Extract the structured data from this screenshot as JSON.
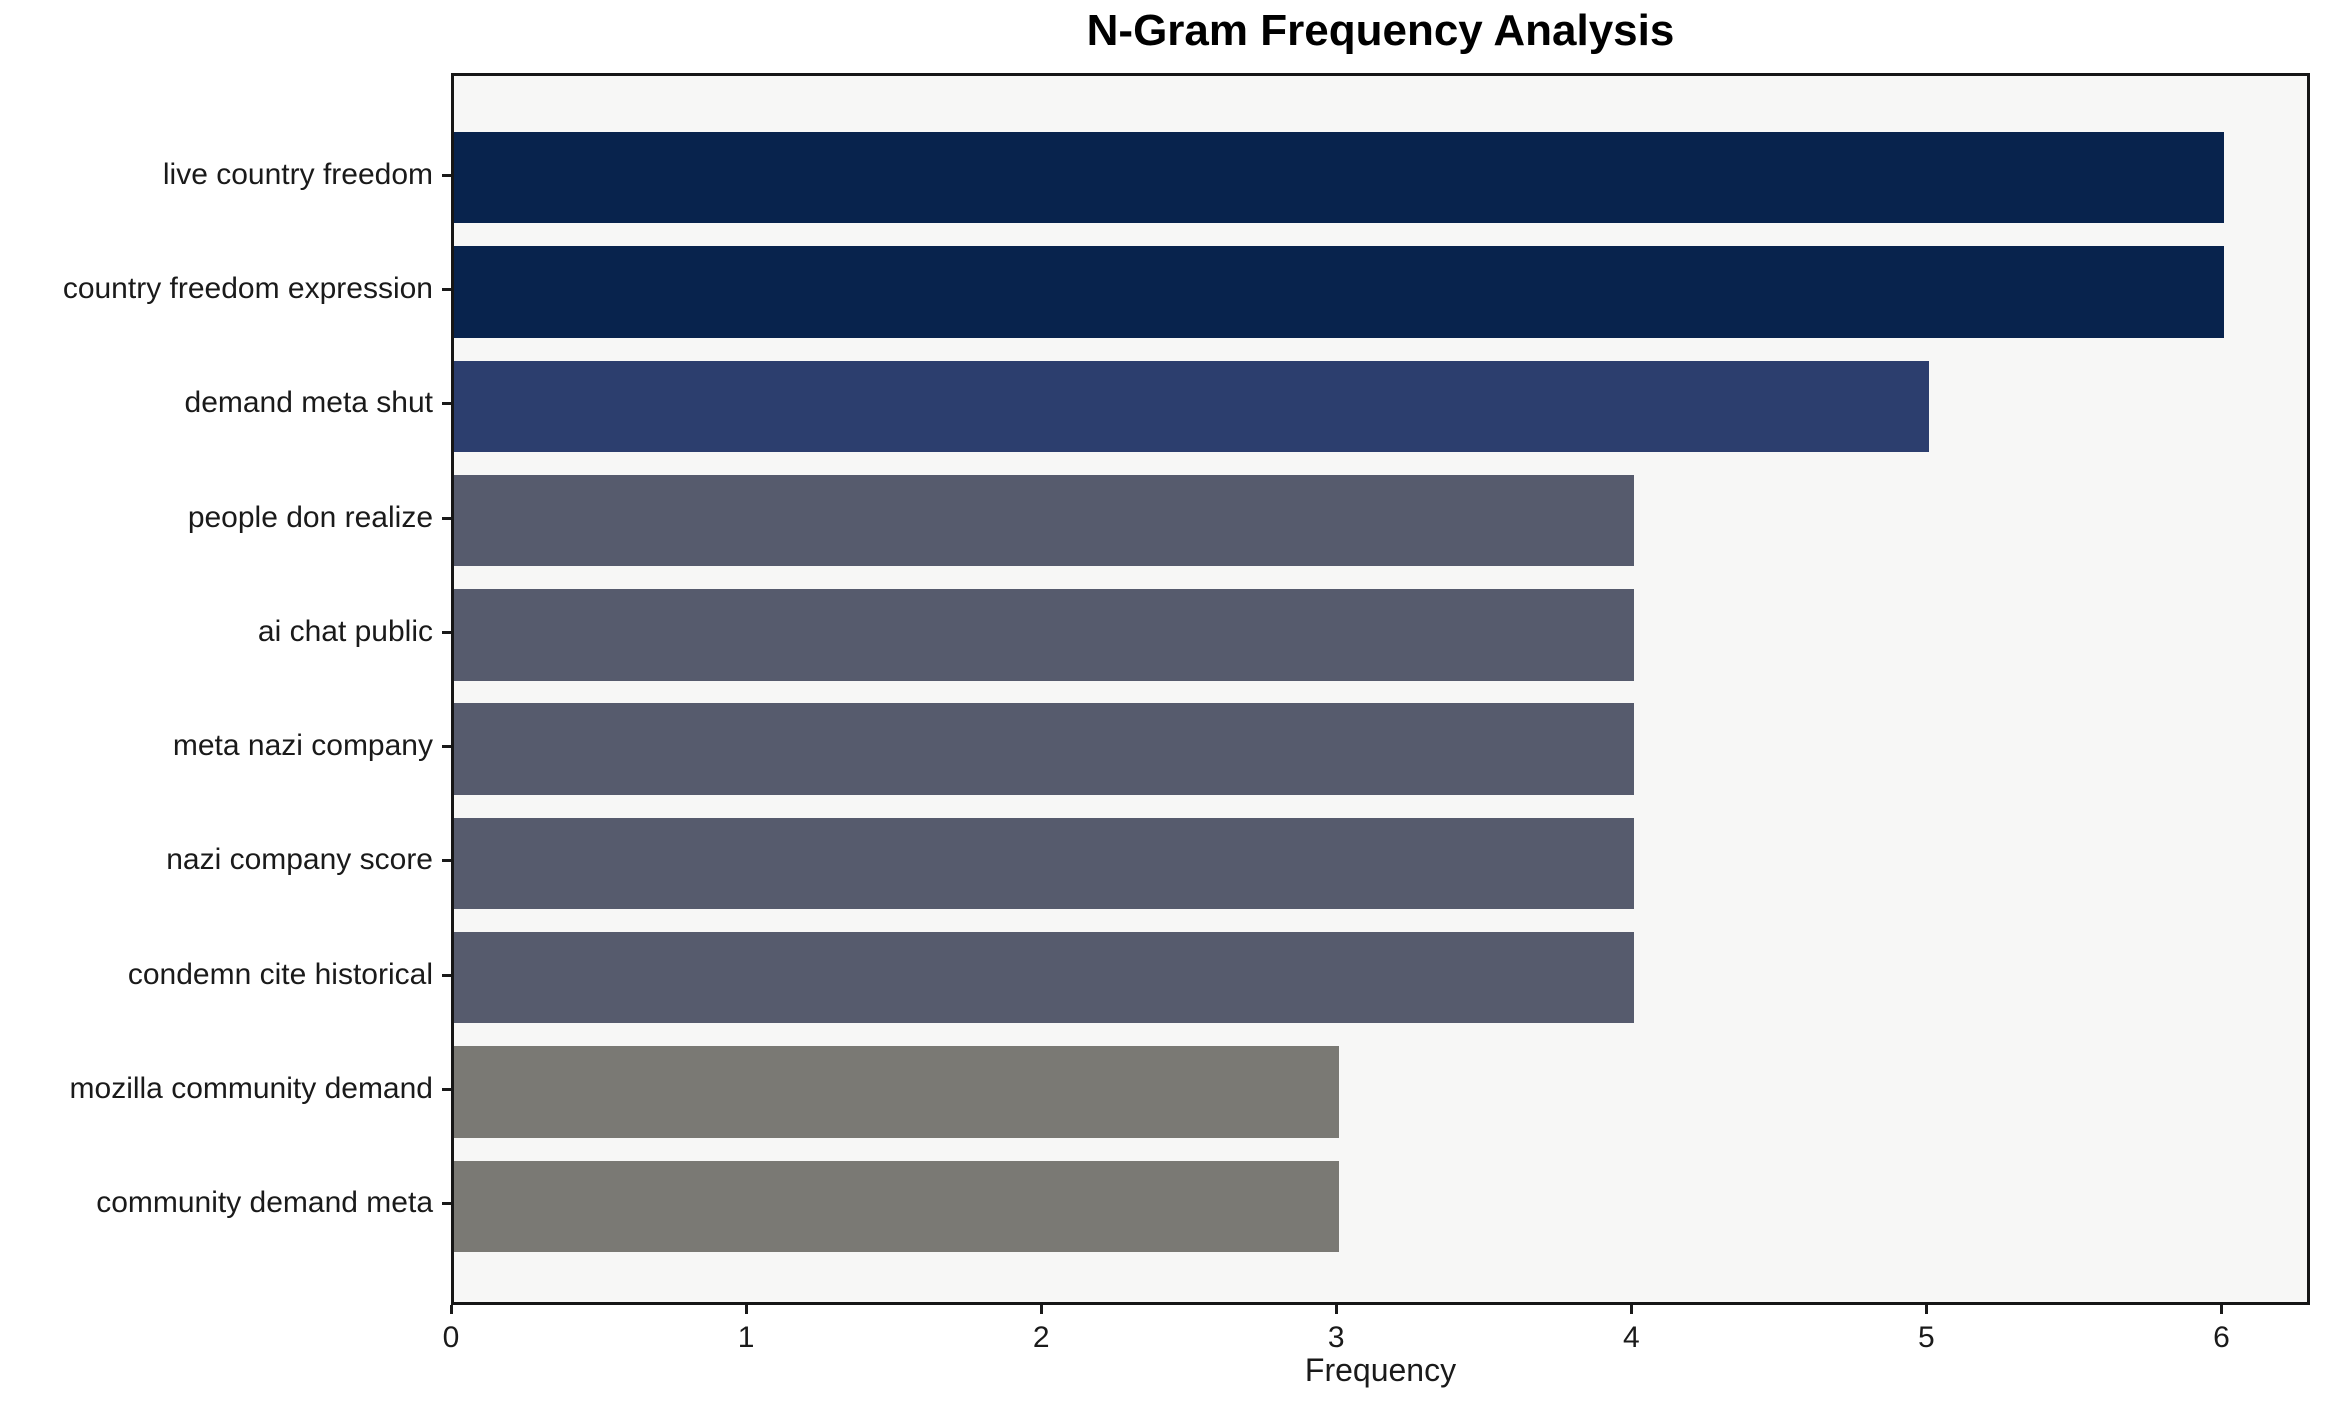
{
  "title": "N-Gram Frequency Analysis",
  "chart_data": {
    "type": "bar",
    "orientation": "horizontal",
    "title": "N-Gram Frequency Analysis",
    "xlabel": "Frequency",
    "ylabel": "",
    "categories": [
      "live country freedom",
      "country freedom expression",
      "demand meta shut",
      "people don realize",
      "ai chat public",
      "meta nazi company",
      "nazi company score",
      "condemn cite historical",
      "mozilla community demand",
      "community demand meta"
    ],
    "values": [
      6,
      6,
      5,
      4,
      4,
      4,
      4,
      4,
      3,
      3
    ],
    "bar_colors": [
      "#08234d",
      "#08234d",
      "#2c3e6e",
      "#565b6d",
      "#565b6d",
      "#565b6d",
      "#565b6d",
      "#565b6d",
      "#7a7974",
      "#7a7974"
    ],
    "xlim": [
      0,
      6.3
    ],
    "xticks": [
      0,
      1,
      2,
      3,
      4,
      5,
      6
    ],
    "grid": false,
    "legend": null,
    "bar_rel_height": 0.8,
    "plot_bg": "#f7f7f6",
    "figure_bg": "#ffffff",
    "spine_color": "#161616",
    "text_color": "#1a1a1a"
  }
}
